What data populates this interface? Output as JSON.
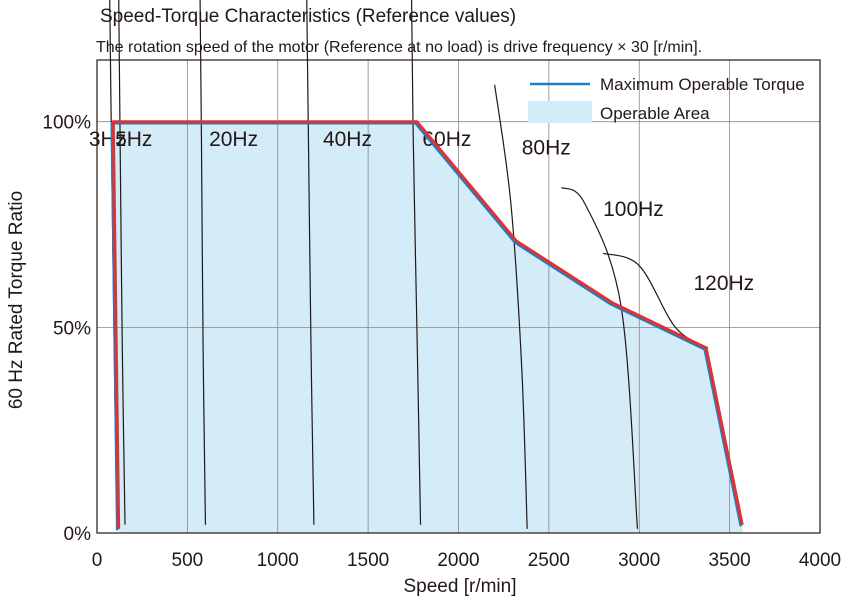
{
  "chart_data": {
    "type": "area",
    "title": "Speed-Torque Characteristics (Reference values)",
    "subtitle": "The rotation speed of the motor (Reference at no load) is drive frequency × 30 [r/min].",
    "xlabel": "Speed [r/min]",
    "ylabel": "60 Hz Rated Torque Ratio",
    "xlim": [
      0,
      4000
    ],
    "ylim": [
      0,
      115
    ],
    "x_ticks": [
      0,
      500,
      1000,
      1500,
      2000,
      2500,
      3000,
      3500,
      4000
    ],
    "x_tick_labels": [
      "0",
      "500",
      "1000",
      "1500",
      "2000",
      "2500",
      "3000",
      "3500",
      "4000"
    ],
    "y_ticks": [
      0,
      50,
      100
    ],
    "y_tick_labels": [
      "0%",
      "50%",
      "100%"
    ],
    "grid": true,
    "legend_position": "top-right",
    "legend": [
      {
        "label": "Maximum Operable Torque",
        "color": "#1a7fc4"
      },
      {
        "label": "Operable Area",
        "color": "#d3ecf8"
      }
    ],
    "series": [
      {
        "name": "Maximum Operable Torque",
        "points": [
          [
            120,
            1
          ],
          [
            90,
            100
          ],
          [
            1770,
            100
          ],
          [
            2320,
            71
          ],
          [
            2850,
            56
          ],
          [
            3370,
            45
          ],
          [
            3570,
            2
          ]
        ]
      }
    ],
    "frequency_curves": [
      {
        "label": "3Hz",
        "points": [
          [
            70,
            131
          ],
          [
            80,
            95
          ],
          [
            95,
            45
          ],
          [
            110,
            2
          ]
        ]
      },
      {
        "label": "5Hz",
        "points": [
          [
            120,
            131
          ],
          [
            128,
            95
          ],
          [
            140,
            45
          ],
          [
            155,
            2
          ]
        ]
      },
      {
        "label": "20Hz",
        "points": [
          [
            570,
            131
          ],
          [
            578,
            95
          ],
          [
            587,
            45
          ],
          [
            600,
            2
          ]
        ]
      },
      {
        "label": "40Hz",
        "points": [
          [
            1160,
            131
          ],
          [
            1170,
            95
          ],
          [
            1184,
            45
          ],
          [
            1200,
            2
          ]
        ]
      },
      {
        "label": "60Hz",
        "points": [
          [
            1740,
            131
          ],
          [
            1750,
            95
          ],
          [
            1772,
            45
          ],
          [
            1790,
            2
          ]
        ]
      },
      {
        "label": "80Hz",
        "points": [
          [
            2200,
            109
          ],
          [
            2290,
            80
          ],
          [
            2350,
            40
          ],
          [
            2380,
            1
          ]
        ]
      },
      {
        "label": "100Hz",
        "points": [
          [
            2570,
            84
          ],
          [
            2700,
            80
          ],
          [
            2900,
            55
          ],
          [
            2990,
            1
          ]
        ]
      },
      {
        "label": "120Hz",
        "points": [
          [
            2800,
            68
          ],
          [
            3000,
            65
          ],
          [
            3200,
            50
          ],
          [
            3380,
            45
          ]
        ]
      }
    ],
    "curve_labels": [
      "3Hz",
      "5Hz",
      "20Hz",
      "40Hz",
      "60Hz",
      "80Hz",
      "100Hz",
      "120Hz"
    ],
    "colors": {
      "line": "#e63030",
      "line_under": "#1a7fc4",
      "area": "#d3ecf8",
      "grid": "#888888",
      "curve": "#231815",
      "text": "#231815"
    }
  }
}
